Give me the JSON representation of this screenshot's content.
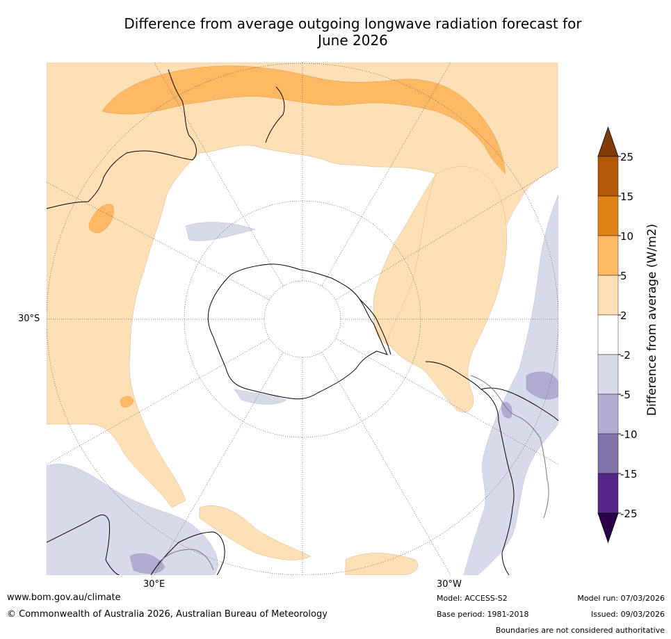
{
  "title_line1": "Difference from average outgoing longwave radiation forecast for",
  "title_line2": "June 2026",
  "map": {
    "lat_label": "30°S",
    "lon_label_east": "30°E",
    "lon_label_west": "30°W"
  },
  "chart_data": {
    "type": "heatmap",
    "title": "Difference from average outgoing longwave radiation forecast for June 2026",
    "projection": "south-polar stereographic",
    "colorbar": {
      "label": "Difference from average (W/m2)",
      "ticks": [
        "25",
        "15",
        "10",
        "5",
        "2",
        "-2",
        "-5",
        "-10",
        "-15",
        "-25"
      ],
      "bins": [
        {
          "range": ">25",
          "color": "#7f3b08"
        },
        {
          "range": "15 to 25",
          "color": "#b35806"
        },
        {
          "range": "10 to 15",
          "color": "#e08214"
        },
        {
          "range": "5 to 10",
          "color": "#fdb863"
        },
        {
          "range": "2 to 5",
          "color": "#fee0b6"
        },
        {
          "range": "-2 to 2",
          "color": "#ffffff"
        },
        {
          "range": "-5 to -2",
          "color": "#d8daeb"
        },
        {
          "range": "-10 to -5",
          "color": "#b2abd2"
        },
        {
          "range": "-15 to -10",
          "color": "#8073ac"
        },
        {
          "range": "-25 to -15",
          "color": "#542788"
        },
        {
          "range": "<-25",
          "color": "#2d004b"
        }
      ]
    }
  },
  "footer": {
    "website": "www.bom.gov.au/climate",
    "copyright": "© Commonwealth of Australia 2026, Australian Bureau of Meteorology",
    "model": "Model: ACCESS-S2",
    "base_period": "Base period: 1981-2018",
    "model_run": "Model run: 07/03/2026",
    "issued": "Issued: 09/03/2026",
    "disclaimer": "Boundaries are not considered authoritative"
  }
}
